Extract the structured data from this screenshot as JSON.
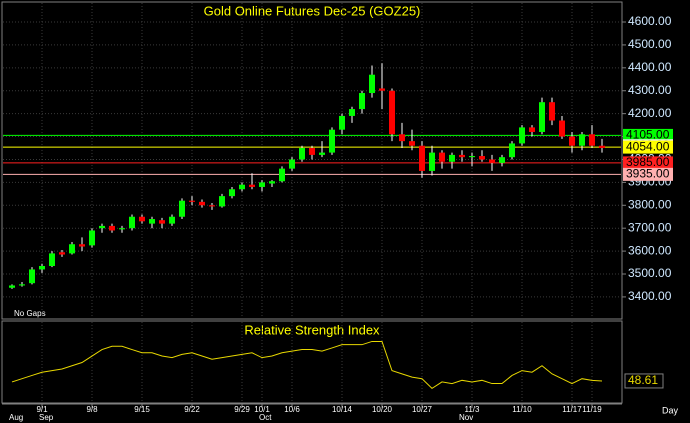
{
  "chart_data": [
    {
      "type": "candlestick",
      "title": "Gold Online Futures Dec-25  (GOZ25)",
      "note": "No Gaps",
      "period": "Day",
      "categories": [
        null,
        null,
        null,
        "9/1",
        null,
        null,
        null,
        null,
        "9/8",
        null,
        null,
        null,
        null,
        "9/15",
        null,
        null,
        null,
        null,
        "9/22",
        null,
        null,
        null,
        null,
        "9/29",
        null,
        "10/1",
        null,
        null,
        "10/6",
        null,
        null,
        null,
        null,
        "10/14",
        null,
        null,
        null,
        "10/20",
        null,
        null,
        null,
        "10/27",
        null,
        null,
        null,
        null,
        "11/3",
        null,
        null,
        null,
        null,
        "11/10",
        null,
        null,
        null,
        null,
        "11/17",
        null,
        "11/19",
        null
      ],
      "months": [
        "Aug",
        null,
        null,
        "Sep",
        null,
        null,
        null,
        null,
        null,
        null,
        null,
        null,
        null,
        null,
        null,
        null,
        null,
        null,
        null,
        null,
        null,
        null,
        null,
        null,
        null,
        "Oct",
        null,
        null,
        null,
        null,
        null,
        null,
        null,
        null,
        null,
        null,
        null,
        null,
        null,
        null,
        null,
        null,
        null,
        null,
        null,
        "Nov",
        null,
        null,
        null,
        null,
        null,
        null,
        null,
        null,
        null,
        null,
        null,
        null,
        null,
        null
      ],
      "open": [
        3440,
        3450,
        3460,
        3520,
        3535,
        3595,
        3590,
        3630,
        3625,
        3700,
        3710,
        3695,
        3700,
        3750,
        3720,
        3735,
        3720,
        3750,
        3820,
        3815,
        3800,
        3795,
        3840,
        3870,
        3890,
        3880,
        3895,
        3905,
        3960,
        4000,
        4050,
        4020,
        4030,
        4130,
        4190,
        4220,
        4290,
        4310,
        4300,
        4110,
        4080,
        4060,
        3950,
        4030,
        3990,
        4020,
        4010,
        4015,
        4000,
        3985,
        4010,
        4070,
        4140,
        4120,
        4250,
        4170,
        4100,
        4060,
        4110,
        4060
      ],
      "high": [
        3455,
        3465,
        3530,
        3545,
        3600,
        3605,
        3640,
        3660,
        3700,
        3720,
        3720,
        3710,
        3760,
        3760,
        3750,
        3745,
        3760,
        3830,
        3840,
        3825,
        3810,
        3850,
        3880,
        3900,
        3940,
        3910,
        3910,
        3970,
        4010,
        4060,
        4060,
        4080,
        4140,
        4200,
        4230,
        4300,
        4410,
        4420,
        4310,
        4160,
        4130,
        4080,
        4060,
        4040,
        4030,
        4040,
        4030,
        4040,
        4020,
        4020,
        4080,
        4150,
        4150,
        4270,
        4270,
        4190,
        4120,
        4120,
        4150,
        4090
      ],
      "low": [
        3435,
        3445,
        3455,
        3505,
        3530,
        3575,
        3585,
        3600,
        3615,
        3680,
        3680,
        3680,
        3690,
        3720,
        3700,
        3700,
        3710,
        3740,
        3800,
        3790,
        3780,
        3790,
        3830,
        3860,
        3870,
        3860,
        3880,
        3900,
        3950,
        3990,
        4000,
        4010,
        4020,
        4110,
        4160,
        4200,
        4270,
        4220,
        4080,
        4050,
        4040,
        3920,
        3930,
        3960,
        3960,
        3990,
        3970,
        3990,
        3950,
        3970,
        4000,
        4060,
        4100,
        4110,
        4150,
        4090,
        4030,
        4040,
        4050,
        4030
      ],
      "close": [
        3450,
        3455,
        3520,
        3535,
        3590,
        3585,
        3630,
        3620,
        3690,
        3710,
        3690,
        3700,
        3750,
        3730,
        3740,
        3720,
        3750,
        3820,
        3815,
        3800,
        3795,
        3840,
        3870,
        3890,
        3880,
        3900,
        3905,
        3960,
        4000,
        4050,
        4020,
        4030,
        4130,
        4190,
        4220,
        4290,
        4370,
        4300,
        4110,
        4080,
        4060,
        3950,
        4030,
        3990,
        4020,
        4010,
        4015,
        4000,
        3985,
        4010,
        4070,
        4140,
        4120,
        4250,
        4170,
        4100,
        4060,
        4110,
        4060,
        4050
      ],
      "up_color": "#00ff00",
      "down_color": "#ff0000",
      "ylim": [
        3308,
        4683
      ],
      "yticks": [
        {
          "value": 3400,
          "label": "3400.00"
        },
        {
          "value": 3500,
          "label": "3500.00"
        },
        {
          "value": 3600,
          "label": "3600.00"
        },
        {
          "value": 3700,
          "label": "3700.00"
        },
        {
          "value": 3800,
          "label": "3800.00"
        },
        {
          "value": 3900,
          "label": "3900.00"
        },
        {
          "value": 4000,
          "label": "4000.00"
        },
        {
          "value": 4100,
          "label": "4100.00"
        },
        {
          "value": 4200,
          "label": "4200.00"
        },
        {
          "value": 4300,
          "label": "4300.00"
        },
        {
          "value": 4400,
          "label": "4400.00"
        },
        {
          "value": 4500,
          "label": "4500.00"
        },
        {
          "value": 4600,
          "label": "4600.00"
        }
      ],
      "grid": true,
      "levels": [
        {
          "value": 4105,
          "label": "4105.00",
          "color": "#00ff00",
          "line": true
        },
        {
          "value": 4060,
          "label": "4060.00",
          "color": "#e8e8e8",
          "line": false
        },
        {
          "value": 4054,
          "label": "4054.00",
          "color": "#ffff00",
          "line": true
        },
        {
          "value": 3985,
          "label": "3985.00",
          "color": "#ff2020",
          "line": true
        },
        {
          "value": 3935,
          "label": "3935.00",
          "color": "#ffb0b0",
          "line": true
        }
      ]
    },
    {
      "type": "line",
      "title": "Relative Strength Index",
      "ylim": [
        35,
        85
      ],
      "series": [
        {
          "color": "#e8d800",
          "values": [
            48,
            50,
            52,
            54,
            55,
            56,
            58,
            60,
            64,
            68,
            70,
            70,
            68,
            66,
            66,
            64,
            63,
            65,
            66,
            64,
            62,
            63,
            64,
            65,
            66,
            63,
            64,
            66,
            67,
            68,
            68,
            67,
            69,
            71,
            71,
            71,
            73,
            73,
            55,
            53,
            51,
            50,
            44,
            48,
            47,
            49,
            48,
            49,
            47,
            47,
            52,
            55,
            54,
            58,
            53,
            50,
            47,
            50,
            49,
            48.61
          ]
        }
      ]
    }
  ]
}
